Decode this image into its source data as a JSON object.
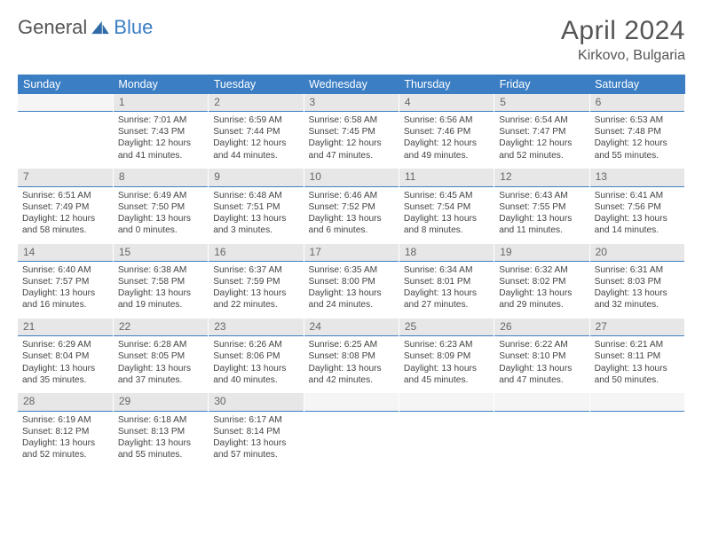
{
  "logo": {
    "text1": "General",
    "text2": "Blue"
  },
  "title": "April 2024",
  "location": "Kirkovo, Bulgaria",
  "weekdays": [
    "Sunday",
    "Monday",
    "Tuesday",
    "Wednesday",
    "Thursday",
    "Friday",
    "Saturday"
  ],
  "colors": {
    "accent": "#3b7ec4",
    "header_bg": "#3b7ec4",
    "daynum_bg": "#e7e7e7"
  },
  "days": [
    {
      "n": "",
      "sr": "",
      "ss": "",
      "dl": ""
    },
    {
      "n": "1",
      "sr": "Sunrise: 7:01 AM",
      "ss": "Sunset: 7:43 PM",
      "dl": "Daylight: 12 hours and 41 minutes."
    },
    {
      "n": "2",
      "sr": "Sunrise: 6:59 AM",
      "ss": "Sunset: 7:44 PM",
      "dl": "Daylight: 12 hours and 44 minutes."
    },
    {
      "n": "3",
      "sr": "Sunrise: 6:58 AM",
      "ss": "Sunset: 7:45 PM",
      "dl": "Daylight: 12 hours and 47 minutes."
    },
    {
      "n": "4",
      "sr": "Sunrise: 6:56 AM",
      "ss": "Sunset: 7:46 PM",
      "dl": "Daylight: 12 hours and 49 minutes."
    },
    {
      "n": "5",
      "sr": "Sunrise: 6:54 AM",
      "ss": "Sunset: 7:47 PM",
      "dl": "Daylight: 12 hours and 52 minutes."
    },
    {
      "n": "6",
      "sr": "Sunrise: 6:53 AM",
      "ss": "Sunset: 7:48 PM",
      "dl": "Daylight: 12 hours and 55 minutes."
    },
    {
      "n": "7",
      "sr": "Sunrise: 6:51 AM",
      "ss": "Sunset: 7:49 PM",
      "dl": "Daylight: 12 hours and 58 minutes."
    },
    {
      "n": "8",
      "sr": "Sunrise: 6:49 AM",
      "ss": "Sunset: 7:50 PM",
      "dl": "Daylight: 13 hours and 0 minutes."
    },
    {
      "n": "9",
      "sr": "Sunrise: 6:48 AM",
      "ss": "Sunset: 7:51 PM",
      "dl": "Daylight: 13 hours and 3 minutes."
    },
    {
      "n": "10",
      "sr": "Sunrise: 6:46 AM",
      "ss": "Sunset: 7:52 PM",
      "dl": "Daylight: 13 hours and 6 minutes."
    },
    {
      "n": "11",
      "sr": "Sunrise: 6:45 AM",
      "ss": "Sunset: 7:54 PM",
      "dl": "Daylight: 13 hours and 8 minutes."
    },
    {
      "n": "12",
      "sr": "Sunrise: 6:43 AM",
      "ss": "Sunset: 7:55 PM",
      "dl": "Daylight: 13 hours and 11 minutes."
    },
    {
      "n": "13",
      "sr": "Sunrise: 6:41 AM",
      "ss": "Sunset: 7:56 PM",
      "dl": "Daylight: 13 hours and 14 minutes."
    },
    {
      "n": "14",
      "sr": "Sunrise: 6:40 AM",
      "ss": "Sunset: 7:57 PM",
      "dl": "Daylight: 13 hours and 16 minutes."
    },
    {
      "n": "15",
      "sr": "Sunrise: 6:38 AM",
      "ss": "Sunset: 7:58 PM",
      "dl": "Daylight: 13 hours and 19 minutes."
    },
    {
      "n": "16",
      "sr": "Sunrise: 6:37 AM",
      "ss": "Sunset: 7:59 PM",
      "dl": "Daylight: 13 hours and 22 minutes."
    },
    {
      "n": "17",
      "sr": "Sunrise: 6:35 AM",
      "ss": "Sunset: 8:00 PM",
      "dl": "Daylight: 13 hours and 24 minutes."
    },
    {
      "n": "18",
      "sr": "Sunrise: 6:34 AM",
      "ss": "Sunset: 8:01 PM",
      "dl": "Daylight: 13 hours and 27 minutes."
    },
    {
      "n": "19",
      "sr": "Sunrise: 6:32 AM",
      "ss": "Sunset: 8:02 PM",
      "dl": "Daylight: 13 hours and 29 minutes."
    },
    {
      "n": "20",
      "sr": "Sunrise: 6:31 AM",
      "ss": "Sunset: 8:03 PM",
      "dl": "Daylight: 13 hours and 32 minutes."
    },
    {
      "n": "21",
      "sr": "Sunrise: 6:29 AM",
      "ss": "Sunset: 8:04 PM",
      "dl": "Daylight: 13 hours and 35 minutes."
    },
    {
      "n": "22",
      "sr": "Sunrise: 6:28 AM",
      "ss": "Sunset: 8:05 PM",
      "dl": "Daylight: 13 hours and 37 minutes."
    },
    {
      "n": "23",
      "sr": "Sunrise: 6:26 AM",
      "ss": "Sunset: 8:06 PM",
      "dl": "Daylight: 13 hours and 40 minutes."
    },
    {
      "n": "24",
      "sr": "Sunrise: 6:25 AM",
      "ss": "Sunset: 8:08 PM",
      "dl": "Daylight: 13 hours and 42 minutes."
    },
    {
      "n": "25",
      "sr": "Sunrise: 6:23 AM",
      "ss": "Sunset: 8:09 PM",
      "dl": "Daylight: 13 hours and 45 minutes."
    },
    {
      "n": "26",
      "sr": "Sunrise: 6:22 AM",
      "ss": "Sunset: 8:10 PM",
      "dl": "Daylight: 13 hours and 47 minutes."
    },
    {
      "n": "27",
      "sr": "Sunrise: 6:21 AM",
      "ss": "Sunset: 8:11 PM",
      "dl": "Daylight: 13 hours and 50 minutes."
    },
    {
      "n": "28",
      "sr": "Sunrise: 6:19 AM",
      "ss": "Sunset: 8:12 PM",
      "dl": "Daylight: 13 hours and 52 minutes."
    },
    {
      "n": "29",
      "sr": "Sunrise: 6:18 AM",
      "ss": "Sunset: 8:13 PM",
      "dl": "Daylight: 13 hours and 55 minutes."
    },
    {
      "n": "30",
      "sr": "Sunrise: 6:17 AM",
      "ss": "Sunset: 8:14 PM",
      "dl": "Daylight: 13 hours and 57 minutes."
    },
    {
      "n": "",
      "sr": "",
      "ss": "",
      "dl": ""
    },
    {
      "n": "",
      "sr": "",
      "ss": "",
      "dl": ""
    },
    {
      "n": "",
      "sr": "",
      "ss": "",
      "dl": ""
    },
    {
      "n": "",
      "sr": "",
      "ss": "",
      "dl": ""
    }
  ]
}
